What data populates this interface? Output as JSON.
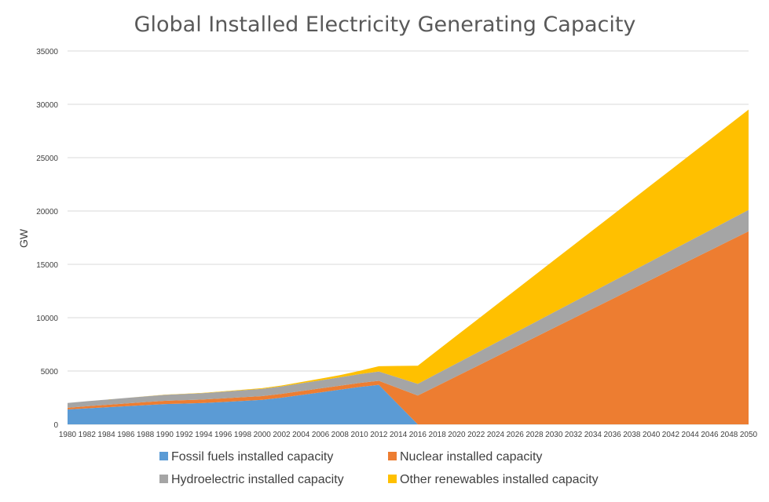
{
  "chart_data": {
    "type": "area",
    "stacked": true,
    "title": "Global Installed Electricity Generating Capacity",
    "xlabel": "",
    "ylabel": "GW",
    "ylim": [
      0,
      35000
    ],
    "yticks": [
      0,
      5000,
      10000,
      15000,
      20000,
      25000,
      30000,
      35000
    ],
    "grid": true,
    "legend_position": "bottom",
    "x": [
      1980,
      1982,
      1984,
      1986,
      1988,
      1990,
      1992,
      1994,
      1996,
      1998,
      2000,
      2002,
      2004,
      2006,
      2008,
      2010,
      2012,
      2014,
      2016,
      2018,
      2020,
      2022,
      2024,
      2026,
      2028,
      2030,
      2032,
      2034,
      2036,
      2038,
      2040,
      2042,
      2044,
      2046,
      2048,
      2050
    ],
    "series": [
      {
        "name": "Fossil fuels installed capacity",
        "color": "#5b9bd5",
        "values": [
          1400,
          1500,
          1600,
          1700,
          1800,
          1900,
          1950,
          2000,
          2100,
          2200,
          2300,
          2500,
          2750,
          3000,
          3250,
          3500,
          3700,
          null,
          0,
          null,
          null,
          null,
          null,
          null,
          null,
          null,
          null,
          null,
          null,
          null,
          null,
          null,
          null,
          null,
          null,
          null
        ]
      },
      {
        "name": "Nuclear installed capacity",
        "color": "#ed7d31",
        "values": [
          150,
          200,
          230,
          260,
          290,
          310,
          320,
          330,
          340,
          350,
          350,
          360,
          370,
          370,
          370,
          380,
          380,
          null,
          2700,
          null,
          null,
          null,
          null,
          null,
          null,
          null,
          null,
          null,
          null,
          null,
          null,
          null,
          null,
          null,
          null,
          18100
        ]
      },
      {
        "name": "Hydroelectric installed capacity",
        "color": "#a5a5a5",
        "values": [
          450,
          470,
          490,
          510,
          530,
          560,
          580,
          600,
          620,
          650,
          680,
          700,
          730,
          760,
          790,
          830,
          870,
          null,
          1100,
          null,
          null,
          null,
          null,
          null,
          null,
          null,
          null,
          null,
          null,
          null,
          null,
          null,
          null,
          null,
          null,
          2000
        ]
      },
      {
        "name": "Other renewables installed capacity",
        "color": "#ffc000",
        "values": [
          0,
          0,
          0,
          5,
          10,
          15,
          20,
          25,
          35,
          45,
          60,
          80,
          110,
          150,
          200,
          300,
          500,
          null,
          1700,
          null,
          null,
          null,
          null,
          null,
          null,
          null,
          null,
          null,
          null,
          null,
          null,
          null,
          null,
          null,
          null,
          9400
        ]
      }
    ]
  }
}
